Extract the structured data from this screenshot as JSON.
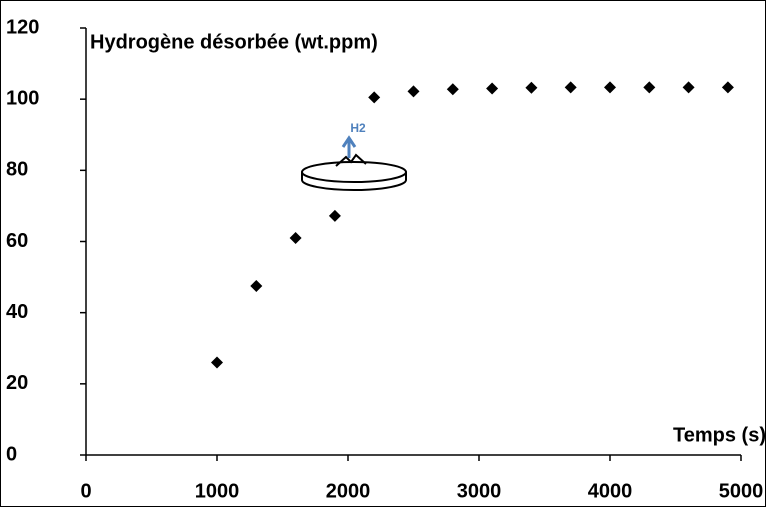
{
  "chart_data": {
    "type": "scatter",
    "y_label": "Hydrogène désorbée (wt.ppm)",
    "x_label": "Temps (s)",
    "annotation": "H2",
    "x": [
      1000,
      1300,
      1600,
      1900,
      2200,
      2500,
      2800,
      3100,
      3400,
      3700,
      4000,
      4300,
      4600,
      4900
    ],
    "values": [
      26,
      47.5,
      61,
      67.2,
      100.5,
      102.2,
      102.8,
      103,
      103.2,
      103.3,
      103.3,
      103.3,
      103.3,
      103.3
    ],
    "color": "#000000",
    "xlim": [
      0,
      5000
    ],
    "xticks": [
      0,
      1000,
      2000,
      3000,
      4000,
      5000
    ],
    "ylim": [
      0,
      120
    ],
    "yticks": [
      0,
      20,
      40,
      60,
      80,
      100,
      120
    ]
  }
}
